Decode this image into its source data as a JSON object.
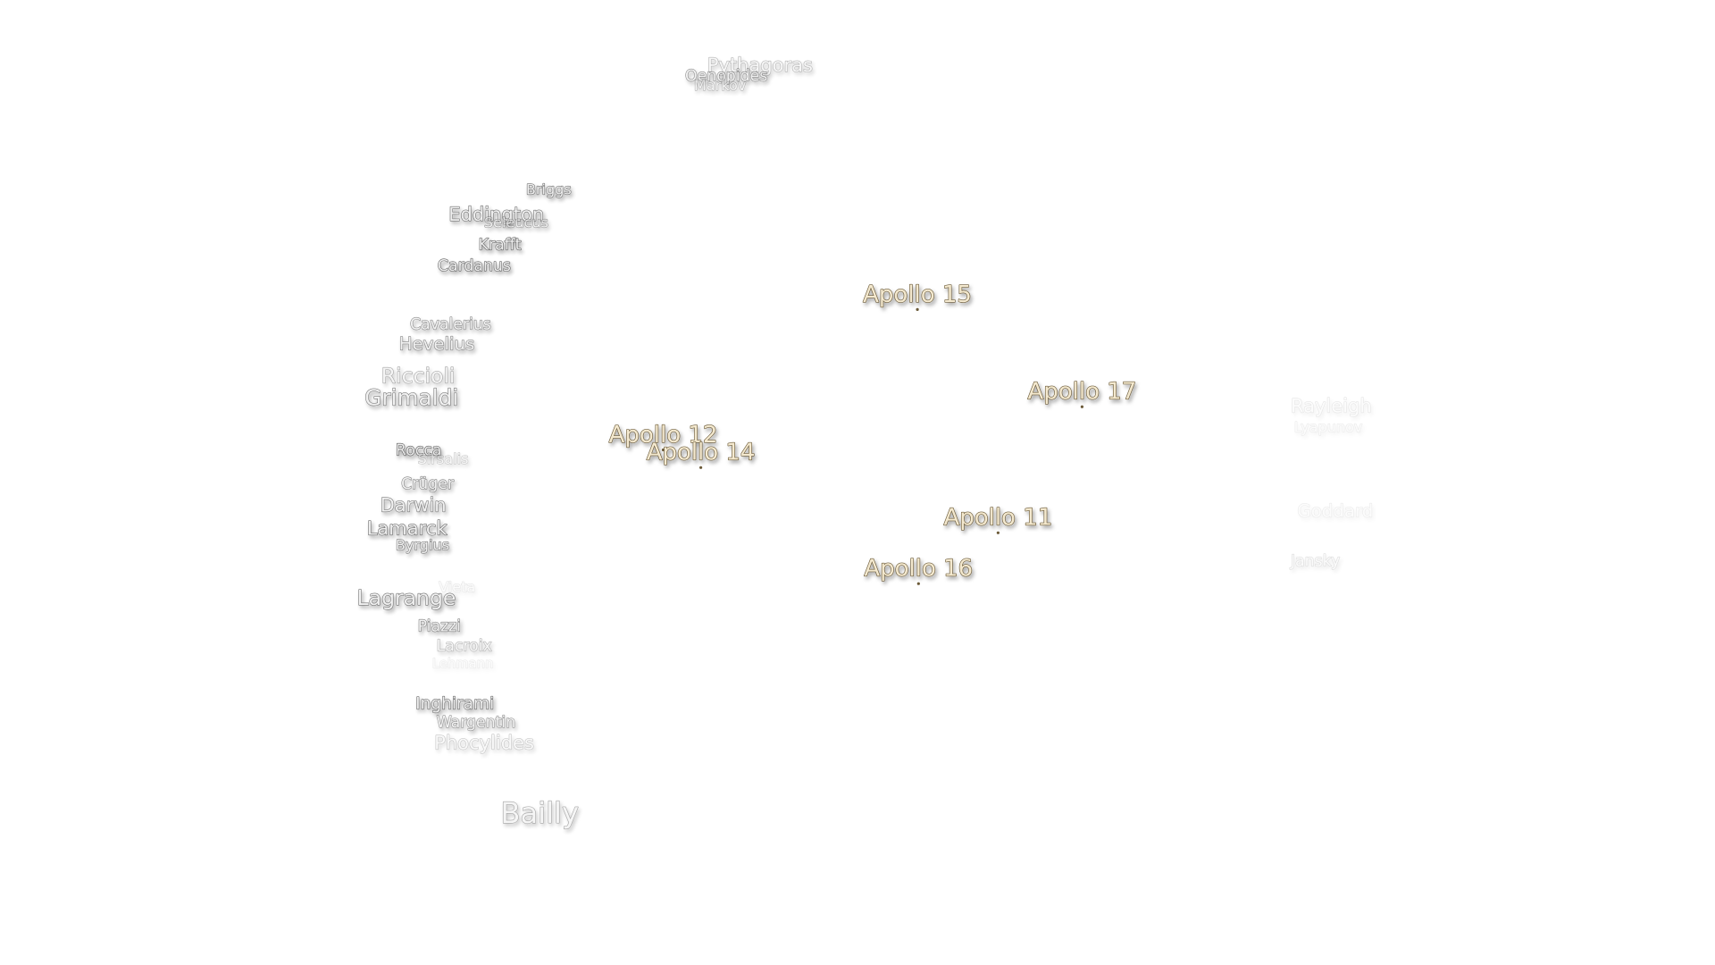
{
  "labels": [
    "Pythagoras",
    "Oenopides",
    "Markov",
    "Briggs",
    "Eddington",
    "Seleucus",
    "Krafft",
    "Cardanus",
    "Cavalerius",
    "Hevelius",
    "Riccioli",
    "Grimaldi",
    "Rocca",
    "Sirsalis",
    "Crüger",
    "Darwin",
    "Lamarck",
    "Byrgius",
    "Vieta",
    "Lagrange",
    "Piazzi",
    "Lacroix",
    "Lehmann",
    "Inghirami",
    "Wargentin",
    "Phocylides",
    "Bailly",
    "Rayleigh",
    "Lyapunov",
    "Goddard",
    "Jansky"
  ],
  "apollo": [
    "Apollo 15",
    "Apollo 17",
    "Apollo 12",
    "Apollo 14",
    "Apollo 11",
    "Apollo 16"
  ]
}
